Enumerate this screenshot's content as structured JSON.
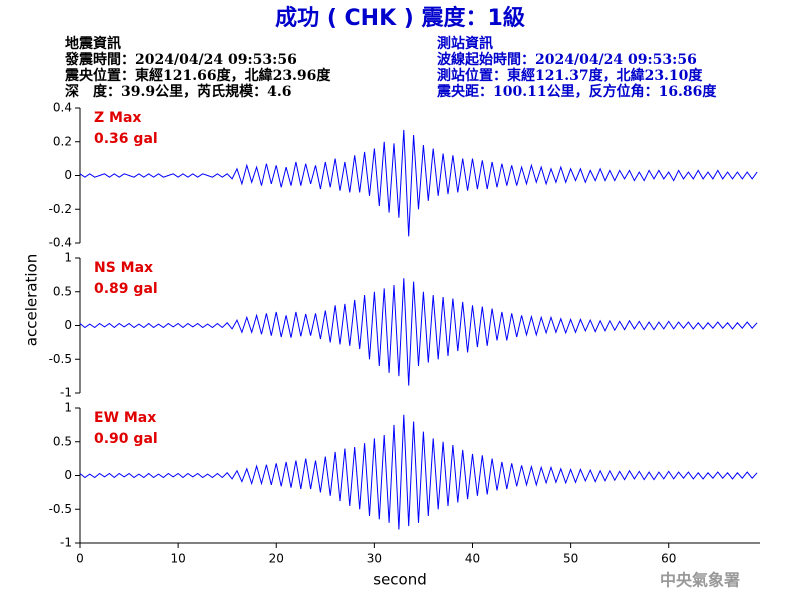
{
  "header": {
    "title": "成功 ( CHK ) 震度：1級",
    "left": [
      "地震資訊",
      "發震時間：2024/04/24 09:53:56",
      "震央位置：東經121.66度，北緯23.96度",
      "深　度：39.9公里，芮氏規模：4.6"
    ],
    "right": [
      "測站資訊",
      "波線起始時間：2024/04/24 09:53:56",
      "測站位置：東經121.37度，北緯23.10度",
      "震央距：100.11公里，反方位角：16.86度"
    ]
  },
  "footer": "中央氣象署",
  "chart_data": [
    {
      "type": "line",
      "annotations": [
        "Z Max",
        "0.36 gal"
      ],
      "color": "#0000ff",
      "xlim": [
        0,
        69.3
      ],
      "ylim": [
        -0.4,
        0.4
      ],
      "yticks": [
        0.4,
        0.2,
        0,
        -0.2,
        -0.4
      ],
      "x": [
        0,
        0.5,
        1,
        1.5,
        2,
        2.5,
        3,
        3.5,
        4,
        4.5,
        5,
        5.5,
        6,
        6.5,
        7,
        7.5,
        8,
        8.5,
        9,
        9.5,
        10,
        10.5,
        11,
        11.5,
        12,
        12.5,
        13,
        13.5,
        14,
        14.5,
        15,
        15.5,
        16,
        16.5,
        17,
        17.5,
        18,
        18.5,
        19,
        19.5,
        20,
        20.5,
        21,
        21.5,
        22,
        22.5,
        23,
        23.5,
        24,
        24.5,
        25,
        25.5,
        26,
        26.5,
        27,
        27.5,
        28,
        28.5,
        29,
        29.5,
        30,
        30.5,
        31,
        31.5,
        32,
        32.5,
        33,
        33.5,
        34,
        34.5,
        35,
        35.5,
        36,
        36.5,
        37,
        37.5,
        38,
        38.5,
        39,
        39.5,
        40,
        40.5,
        41,
        41.5,
        42,
        42.5,
        43,
        43.5,
        44,
        44.5,
        45,
        45.5,
        46,
        46.5,
        47,
        47.5,
        48,
        48.5,
        49,
        49.5,
        50,
        50.5,
        51,
        51.5,
        52,
        52.5,
        53,
        53.5,
        54,
        54.5,
        55,
        55.5,
        56,
        56.5,
        57,
        57.5,
        58,
        58.5,
        59,
        59.5,
        60,
        60.5,
        61,
        61.5,
        62,
        62.5,
        63,
        63.5,
        64,
        64.5,
        65,
        65.5,
        66,
        66.5,
        67,
        67.5,
        68,
        68.5,
        69
      ],
      "values": [
        0.01,
        -0.01,
        0.01,
        -0.01,
        0,
        0.01,
        -0.01,
        0.01,
        -0.01,
        0.01,
        0,
        -0.01,
        0.01,
        -0.01,
        0.01,
        -0.01,
        0.01,
        -0.01,
        0,
        0.01,
        -0.01,
        0.01,
        -0.01,
        0.01,
        -0.01,
        0.01,
        0,
        -0.01,
        0.01,
        -0.01,
        0.01,
        -0.02,
        0.04,
        -0.05,
        0.06,
        -0.04,
        0.05,
        -0.06,
        0.07,
        -0.05,
        0.06,
        -0.07,
        0.05,
        -0.06,
        0.08,
        -0.06,
        0.07,
        -0.05,
        0.06,
        -0.08,
        0.08,
        -0.07,
        0.1,
        -0.09,
        0.08,
        -0.1,
        0.12,
        -0.1,
        0.14,
        -0.12,
        0.16,
        -0.18,
        0.2,
        -0.22,
        0.19,
        -0.25,
        0.27,
        -0.36,
        0.24,
        -0.2,
        0.18,
        -0.15,
        0.16,
        -0.12,
        0.13,
        -0.11,
        0.12,
        -0.1,
        0.1,
        -0.09,
        0.1,
        -0.08,
        0.09,
        -0.08,
        0.08,
        -0.07,
        0.07,
        -0.06,
        0.06,
        -0.06,
        0.05,
        -0.05,
        0.06,
        -0.04,
        0.05,
        -0.05,
        0.04,
        -0.04,
        0.05,
        -0.04,
        0.04,
        -0.03,
        0.04,
        -0.04,
        0.03,
        -0.03,
        0.04,
        -0.03,
        0.03,
        -0.03,
        0.03,
        -0.02,
        0.03,
        -0.03,
        0.02,
        -0.03,
        0.03,
        -0.02,
        0.03,
        -0.02,
        0.02,
        -0.03,
        0.03,
        -0.02,
        0.02,
        -0.02,
        0.03,
        -0.02,
        0.02,
        -0.02,
        0.03,
        -0.02,
        0.02,
        -0.02,
        0.02,
        -0.02,
        0.02,
        -0.02,
        0.02
      ]
    },
    {
      "type": "line",
      "annotations": [
        "NS Max",
        "0.89 gal"
      ],
      "ylabel": "acceleration",
      "color": "#0000ff",
      "xlim": [
        0,
        69.3
      ],
      "ylim": [
        -1,
        1
      ],
      "yticks": [
        1,
        0.5,
        0,
        -0.5,
        -1
      ],
      "x": [
        0,
        0.5,
        1,
        1.5,
        2,
        2.5,
        3,
        3.5,
        4,
        4.5,
        5,
        5.5,
        6,
        6.5,
        7,
        7.5,
        8,
        8.5,
        9,
        9.5,
        10,
        10.5,
        11,
        11.5,
        12,
        12.5,
        13,
        13.5,
        14,
        14.5,
        15,
        15.5,
        16,
        16.5,
        17,
        17.5,
        18,
        18.5,
        19,
        19.5,
        20,
        20.5,
        21,
        21.5,
        22,
        22.5,
        23,
        23.5,
        24,
        24.5,
        25,
        25.5,
        26,
        26.5,
        27,
        27.5,
        28,
        28.5,
        29,
        29.5,
        30,
        30.5,
        31,
        31.5,
        32,
        32.5,
        33,
        33.5,
        34,
        34.5,
        35,
        35.5,
        36,
        36.5,
        37,
        37.5,
        38,
        38.5,
        39,
        39.5,
        40,
        40.5,
        41,
        41.5,
        42,
        42.5,
        43,
        43.5,
        44,
        44.5,
        45,
        45.5,
        46,
        46.5,
        47,
        47.5,
        48,
        48.5,
        49,
        49.5,
        50,
        50.5,
        51,
        51.5,
        52,
        52.5,
        53,
        53.5,
        54,
        54.5,
        55,
        55.5,
        56,
        56.5,
        57,
        57.5,
        58,
        58.5,
        59,
        59.5,
        60,
        60.5,
        61,
        61.5,
        62,
        62.5,
        63,
        63.5,
        64,
        64.5,
        65,
        65.5,
        66,
        66.5,
        67,
        67.5,
        68,
        68.5,
        69
      ],
      "values": [
        0.03,
        -0.03,
        0.02,
        -0.03,
        0.03,
        -0.02,
        0.03,
        -0.03,
        0.03,
        -0.02,
        0.03,
        -0.03,
        0.02,
        -0.03,
        0.03,
        -0.03,
        0.02,
        -0.03,
        0.03,
        -0.02,
        0.03,
        -0.03,
        0.03,
        -0.02,
        0.03,
        -0.03,
        0.02,
        -0.03,
        0.03,
        -0.03,
        0.04,
        -0.05,
        0.08,
        -0.1,
        0.12,
        -0.1,
        0.15,
        -0.13,
        0.18,
        -0.15,
        0.2,
        -0.17,
        0.15,
        -0.18,
        0.2,
        -0.16,
        0.17,
        -0.15,
        0.18,
        -0.2,
        0.22,
        -0.25,
        0.3,
        -0.28,
        0.32,
        -0.3,
        0.38,
        -0.35,
        0.45,
        -0.5,
        0.5,
        -0.6,
        0.55,
        -0.7,
        0.6,
        -0.75,
        0.7,
        -0.89,
        0.65,
        -0.6,
        0.5,
        -0.55,
        0.45,
        -0.5,
        0.42,
        -0.45,
        0.4,
        -0.38,
        0.35,
        -0.4,
        0.3,
        -0.32,
        0.28,
        -0.3,
        0.25,
        -0.22,
        0.2,
        -0.22,
        0.18,
        -0.17,
        0.15,
        -0.14,
        0.13,
        -0.14,
        0.12,
        -0.11,
        0.12,
        -0.1,
        0.1,
        -0.11,
        0.09,
        -0.1,
        0.09,
        -0.08,
        0.08,
        -0.09,
        0.07,
        -0.08,
        0.07,
        -0.07,
        0.06,
        -0.06,
        0.07,
        -0.05,
        0.06,
        -0.06,
        0.05,
        -0.06,
        0.05,
        -0.05,
        0.06,
        -0.05,
        0.05,
        -0.04,
        0.05,
        -0.05,
        0.04,
        -0.05,
        0.04,
        -0.04,
        0.05,
        -0.04,
        0.04,
        -0.05,
        0.04,
        -0.04,
        0.05,
        -0.04,
        0.04
      ]
    },
    {
      "type": "line",
      "annotations": [
        "EW Max",
        "0.90 gal"
      ],
      "xlabel": "second",
      "color": "#0000ff",
      "xlim": [
        0,
        69.3
      ],
      "ylim": [
        -1,
        1
      ],
      "yticks": [
        1,
        0.5,
        0,
        -0.5,
        -1
      ],
      "xticks": [
        0,
        10,
        20,
        30,
        40,
        50,
        60
      ],
      "x": [
        0,
        0.5,
        1,
        1.5,
        2,
        2.5,
        3,
        3.5,
        4,
        4.5,
        5,
        5.5,
        6,
        6.5,
        7,
        7.5,
        8,
        8.5,
        9,
        9.5,
        10,
        10.5,
        11,
        11.5,
        12,
        12.5,
        13,
        13.5,
        14,
        14.5,
        15,
        15.5,
        16,
        16.5,
        17,
        17.5,
        18,
        18.5,
        19,
        19.5,
        20,
        20.5,
        21,
        21.5,
        22,
        22.5,
        23,
        23.5,
        24,
        24.5,
        25,
        25.5,
        26,
        26.5,
        27,
        27.5,
        28,
        28.5,
        29,
        29.5,
        30,
        30.5,
        31,
        31.5,
        32,
        32.5,
        33,
        33.5,
        34,
        34.5,
        35,
        35.5,
        36,
        36.5,
        37,
        37.5,
        38,
        38.5,
        39,
        39.5,
        40,
        40.5,
        41,
        41.5,
        42,
        42.5,
        43,
        43.5,
        44,
        44.5,
        45,
        45.5,
        46,
        46.5,
        47,
        47.5,
        48,
        48.5,
        49,
        49.5,
        50,
        50.5,
        51,
        51.5,
        52,
        52.5,
        53,
        53.5,
        54,
        54.5,
        55,
        55.5,
        56,
        56.5,
        57,
        57.5,
        58,
        58.5,
        59,
        59.5,
        60,
        60.5,
        61,
        61.5,
        62,
        62.5,
        63,
        63.5,
        64,
        64.5,
        65,
        65.5,
        66,
        66.5,
        67,
        67.5,
        68,
        68.5,
        69
      ],
      "values": [
        0.03,
        -0.03,
        0.02,
        -0.03,
        0.03,
        -0.02,
        0.03,
        -0.03,
        0.03,
        -0.02,
        0.03,
        -0.03,
        0.02,
        -0.03,
        0.03,
        -0.03,
        0.02,
        -0.03,
        0.03,
        -0.02,
        0.03,
        -0.03,
        0.03,
        -0.02,
        0.03,
        -0.03,
        0.02,
        -0.03,
        0.03,
        -0.03,
        0.04,
        -0.05,
        0.07,
        -0.09,
        0.1,
        -0.12,
        0.14,
        -0.12,
        0.16,
        -0.14,
        0.18,
        -0.16,
        0.2,
        -0.18,
        0.22,
        -0.2,
        0.25,
        -0.2,
        0.22,
        -0.25,
        0.28,
        -0.3,
        0.35,
        -0.38,
        0.4,
        -0.45,
        0.42,
        -0.5,
        0.48,
        -0.6,
        0.55,
        -0.65,
        0.6,
        -0.7,
        0.75,
        -0.8,
        0.9,
        -0.75,
        0.8,
        -0.7,
        0.65,
        -0.6,
        0.55,
        -0.5,
        0.5,
        -0.45,
        0.45,
        -0.4,
        0.38,
        -0.35,
        0.32,
        -0.3,
        0.3,
        -0.28,
        0.25,
        -0.22,
        0.2,
        -0.2,
        0.18,
        -0.16,
        0.15,
        -0.14,
        0.13,
        -0.14,
        0.12,
        -0.11,
        0.12,
        -0.1,
        0.1,
        -0.11,
        0.09,
        -0.1,
        0.09,
        -0.08,
        0.08,
        -0.09,
        0.07,
        -0.08,
        0.07,
        -0.07,
        0.06,
        -0.06,
        0.07,
        -0.05,
        0.06,
        -0.06,
        0.05,
        -0.06,
        0.05,
        -0.05,
        0.06,
        -0.05,
        0.05,
        -0.04,
        0.05,
        -0.05,
        0.04,
        -0.05,
        0.04,
        -0.04,
        0.05,
        -0.04,
        0.04,
        -0.05,
        0.04,
        -0.04,
        0.05,
        -0.04,
        0.04
      ]
    }
  ]
}
